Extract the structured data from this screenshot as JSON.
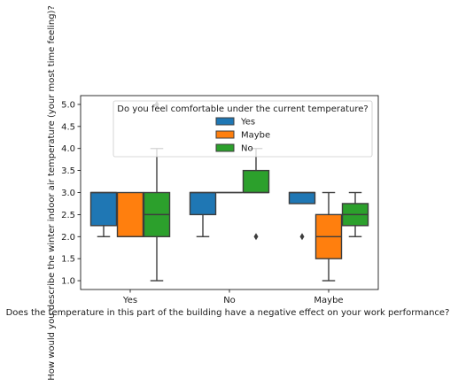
{
  "chart_data": {
    "type": "boxplot",
    "title": "",
    "xlabel": "Does the temperature in this part of the building have a negative effect on your work performance?",
    "ylabel": "How would you describe the winter indoor air temperature (your most time feeling)?",
    "categories": [
      "Yes",
      "No",
      "Maybe"
    ],
    "ylim": [
      0.8,
      5.2
    ],
    "yticks": [
      "1.0",
      "1.5",
      "2.0",
      "2.5",
      "3.0",
      "3.5",
      "4.0",
      "4.5",
      "5.0"
    ],
    "grid": false,
    "legend": {
      "title": "Do you feel comfortable under the current temperature?",
      "placement": "top-right"
    },
    "series": [
      {
        "name": "Yes",
        "color": "#1f77b4",
        "boxes": [
          {
            "category": "Yes",
            "whisker_low": 2.0,
            "q1": 2.25,
            "median": 3.0,
            "q3": 3.0,
            "whisker_high": 3.0,
            "outliers": []
          },
          {
            "category": "No",
            "whisker_low": 2.0,
            "q1": 2.5,
            "median": 3.0,
            "q3": 3.0,
            "whisker_high": 3.0,
            "outliers": []
          },
          {
            "category": "Maybe",
            "whisker_low": 2.75,
            "q1": 2.75,
            "median": 3.0,
            "q3": 3.0,
            "whisker_high": 3.0,
            "outliers": [
              2.0
            ]
          }
        ]
      },
      {
        "name": "Maybe",
        "color": "#ff7f0e",
        "boxes": [
          {
            "category": "Yes",
            "whisker_low": 2.0,
            "q1": 2.0,
            "median": 2.0,
            "q3": 3.0,
            "whisker_high": 3.0,
            "outliers": []
          },
          {
            "category": "No",
            "whisker_low": 3.0,
            "q1": 3.0,
            "median": 3.0,
            "q3": 3.0,
            "whisker_high": 3.0,
            "outliers": []
          },
          {
            "category": "Maybe",
            "whisker_low": 1.0,
            "q1": 1.5,
            "median": 2.0,
            "q3": 2.5,
            "whisker_high": 3.0,
            "outliers": []
          }
        ]
      },
      {
        "name": "No",
        "color": "#2ca02c",
        "boxes": [
          {
            "category": "Yes",
            "whisker_low": 1.0,
            "q1": 2.0,
            "median": 2.5,
            "q3": 3.0,
            "whisker_high": 4.0,
            "outliers": [
              5.0
            ]
          },
          {
            "category": "No",
            "whisker_low": 3.0,
            "q1": 3.0,
            "median": 3.0,
            "q3": 3.5,
            "whisker_high": 4.0,
            "outliers": [
              2.0
            ]
          },
          {
            "category": "Maybe",
            "whisker_low": 2.0,
            "q1": 2.25,
            "median": 2.5,
            "q3": 2.75,
            "whisker_high": 3.0,
            "outliers": []
          }
        ]
      }
    ]
  }
}
